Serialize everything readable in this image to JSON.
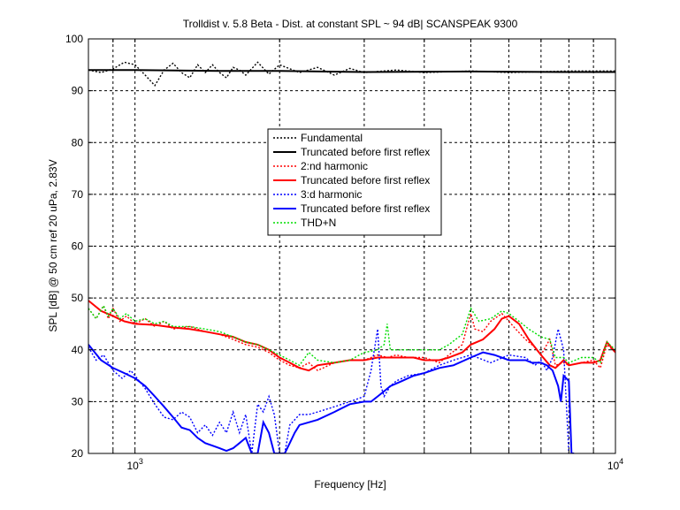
{
  "chart_data": {
    "type": "line",
    "title": "Trolldist v. 5.8 Beta - Dist. at constant SPL ~ 94 dB| SCANSPEAK 9300",
    "xlabel": "Frequency [Hz]",
    "ylabel": "SPL [dB] @ 50 cm ref 20 uPa, 2.83V",
    "x_scale": "log",
    "xlim": [
      800,
      10000
    ],
    "ylim": [
      20,
      100
    ],
    "grid": true,
    "legend_position": "center",
    "x_tick_labels": [
      {
        "value": 1000,
        "base": "10",
        "exp": "3"
      },
      {
        "value": 10000,
        "base": "10",
        "exp": "4"
      }
    ],
    "x_minor_gridlines": [
      900,
      2000,
      3000,
      4000,
      5000,
      6000,
      7000,
      8000,
      9000
    ],
    "y_ticks": [
      20,
      30,
      40,
      50,
      60,
      70,
      80,
      90,
      100
    ],
    "series": [
      {
        "name": "Fundamental",
        "color": "#000000",
        "style": "dotted",
        "x": [
          800,
          850,
          900,
          950,
          1000,
          1050,
          1100,
          1150,
          1200,
          1250,
          1300,
          1350,
          1400,
          1450,
          1500,
          1550,
          1600,
          1650,
          1700,
          1800,
          1900,
          2000,
          2200,
          2400,
          2600,
          2800,
          3000,
          3500,
          4000,
          5000,
          6000,
          8000,
          10000
        ],
        "y": [
          94,
          93.5,
          94.2,
          95.5,
          95,
          93,
          91,
          94,
          95.3,
          93.5,
          92.5,
          95,
          93.5,
          95,
          93.5,
          92.5,
          94.5,
          94,
          93,
          95.5,
          93.2,
          95,
          93.5,
          94.5,
          93,
          94.3,
          93.5,
          94,
          93.5,
          93.8,
          93.5,
          93.8,
          93.8
        ]
      },
      {
        "name": "Truncated before first reflex",
        "color": "#000000",
        "style": "solid",
        "x": [
          800,
          1000,
          1500,
          2000,
          3000,
          5000,
          8000,
          10000
        ],
        "y": [
          94,
          94,
          93.8,
          93.8,
          93.6,
          93.7,
          93.6,
          93.6
        ]
      },
      {
        "name": "2:nd harmonic",
        "color": "#ff0000",
        "style": "dotted",
        "x": [
          800,
          830,
          860,
          880,
          900,
          930,
          960,
          1000,
          1050,
          1100,
          1150,
          1200,
          1300,
          1400,
          1500,
          1600,
          1700,
          1800,
          1900,
          2000,
          2100,
          2200,
          2300,
          2400,
          2600,
          2800,
          3000,
          3200,
          3350,
          3500,
          3700,
          4000,
          4300,
          4500,
          4800,
          5000,
          5100,
          5300,
          5500,
          5800,
          6000,
          6200,
          6500,
          6800,
          7000,
          7300,
          7500,
          7800,
          8000,
          8500,
          9000,
          9300,
          9600,
          10000
        ],
        "y": [
          48,
          46,
          48.5,
          46,
          48,
          45.5,
          46.5,
          45,
          46,
          44.5,
          45.5,
          44,
          44.5,
          43.5,
          43,
          42,
          41,
          40.5,
          39.5,
          38,
          37,
          36.5,
          37.5,
          36,
          37.5,
          38,
          38,
          39,
          38.5,
          39,
          38.5,
          38.5,
          37.5,
          39,
          41,
          47,
          44,
          43.5,
          45.5,
          47,
          45.5,
          44,
          42,
          40.5,
          39,
          42,
          37,
          37.5,
          37,
          37.5,
          38,
          36.5,
          41,
          39.5
        ]
      },
      {
        "name": "Truncated before first reflex",
        "color": "#ff0000",
        "style": "solid",
        "x": [
          800,
          850,
          900,
          950,
          1000,
          1100,
          1200,
          1300,
          1400,
          1500,
          1600,
          1700,
          1800,
          1900,
          2000,
          2100,
          2200,
          2300,
          2400,
          2600,
          2800,
          3000,
          3200,
          3500,
          3800,
          4000,
          4300,
          4500,
          4800,
          5000,
          5300,
          5600,
          5800,
          6000,
          6300,
          6600,
          7000,
          7300,
          7500,
          7800,
          8000,
          8500,
          9000,
          9300,
          9600,
          10000
        ],
        "y": [
          49.5,
          47.5,
          46.5,
          45.5,
          45,
          44.8,
          44.3,
          44,
          43.5,
          43,
          42.5,
          41.5,
          41,
          40,
          38.5,
          37.5,
          36.5,
          36,
          37,
          37.5,
          38,
          38,
          38.5,
          38.5,
          38.5,
          38,
          38,
          38.5,
          39.5,
          41,
          42,
          44,
          46,
          46.5,
          45,
          42,
          39,
          37,
          36.5,
          38,
          37,
          37.5,
          37.5,
          38,
          41.5,
          39.5
        ]
      },
      {
        "name": "3:d harmonic",
        "color": "#0000ff",
        "style": "dotted",
        "x": [
          800,
          830,
          860,
          900,
          940,
          980,
          1000,
          1050,
          1100,
          1150,
          1200,
          1250,
          1300,
          1350,
          1400,
          1450,
          1500,
          1550,
          1600,
          1650,
          1700,
          1750,
          1800,
          1850,
          1900,
          1950,
          2000,
          2050,
          2100,
          2150,
          2200,
          2300,
          2400,
          2600,
          2800,
          3000,
          3100,
          3200,
          3250,
          3300,
          3400,
          3500,
          3700,
          4000,
          4300,
          4600,
          5000,
          5500,
          6000,
          6500,
          6800,
          7000,
          7200,
          7400,
          7600,
          7800,
          8000
        ],
        "y": [
          40.5,
          38,
          39,
          36,
          34.5,
          36,
          35,
          32.5,
          29.5,
          27,
          26.5,
          28,
          27,
          24,
          25.5,
          23.5,
          26,
          24,
          28,
          24,
          27.5,
          20,
          29.5,
          28,
          31,
          27.5,
          20,
          20,
          25.5,
          26.5,
          27.5,
          27.5,
          28,
          29,
          30,
          31,
          36,
          44,
          33,
          31,
          33,
          34,
          35,
          35.5,
          37,
          38,
          39,
          37.5,
          39,
          38.5,
          37,
          38,
          36,
          38.5,
          44,
          40,
          20
        ]
      },
      {
        "name": "Truncated before first reflex",
        "color": "#0000ff",
        "style": "solid",
        "x": [
          800,
          850,
          900,
          950,
          1000,
          1050,
          1100,
          1150,
          1200,
          1250,
          1300,
          1350,
          1400,
          1450,
          1500,
          1550,
          1600,
          1650,
          1700,
          1750,
          1800,
          1850,
          1900,
          1950,
          2000,
          2050,
          2100,
          2150,
          2200,
          2300,
          2400,
          2600,
          2800,
          3000,
          3100,
          3200,
          3300,
          3400,
          3600,
          3800,
          4000,
          4300,
          4600,
          5000,
          5300,
          5600,
          6000,
          6300,
          6500,
          6700,
          7000,
          7200,
          7400,
          7600,
          7700,
          7800,
          8000,
          8100,
          8200
        ],
        "y": [
          41,
          38,
          36.5,
          35.5,
          34.5,
          33,
          31,
          29,
          27,
          25,
          24.5,
          23,
          22,
          21.5,
          21,
          20.5,
          21,
          22,
          23,
          20,
          20,
          26,
          24,
          20,
          20,
          20,
          22,
          24,
          25.5,
          26,
          26.5,
          28,
          29.5,
          30,
          30,
          31,
          32,
          33,
          34,
          35,
          35.5,
          36.5,
          37,
          38.5,
          39.5,
          39,
          38,
          38,
          38,
          37.5,
          37.5,
          37,
          36,
          33,
          30,
          35,
          34,
          20,
          20
        ]
      },
      {
        "name": "THD+N",
        "color": "#00dd00",
        "style": "dotted",
        "x": [
          800,
          830,
          860,
          880,
          900,
          930,
          960,
          1000,
          1050,
          1100,
          1150,
          1200,
          1300,
          1400,
          1500,
          1600,
          1700,
          1800,
          1900,
          2000,
          2100,
          2200,
          2300,
          2400,
          2600,
          2800,
          3000,
          3200,
          3300,
          3350,
          3400,
          3500,
          3700,
          4000,
          4300,
          4500,
          4800,
          5000,
          5200,
          5500,
          5800,
          6000,
          6300,
          6600,
          7000,
          7300,
          7500,
          7800,
          8000,
          8500,
          9000,
          9300,
          9600,
          10000
        ],
        "y": [
          48,
          46,
          48.5,
          46.5,
          48,
          46,
          47,
          45.5,
          46,
          45,
          45.5,
          44.5,
          44.5,
          44,
          43.5,
          42.5,
          41.5,
          41,
          40,
          39,
          38,
          37,
          39.5,
          38,
          37.5,
          38,
          39.5,
          40,
          41,
          45,
          40,
          40,
          40,
          40,
          40,
          41,
          43,
          48,
          45.5,
          46,
          47.5,
          47,
          45.5,
          44,
          42.5,
          42,
          38.5,
          38.5,
          37.5,
          38.5,
          38.5,
          37.5,
          41.5,
          40
        ]
      }
    ]
  }
}
